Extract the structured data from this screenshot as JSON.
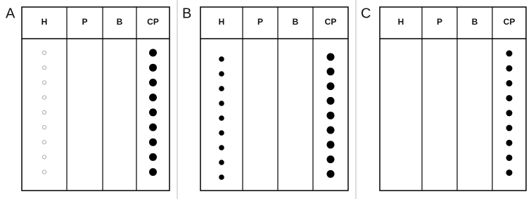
{
  "panels": [
    {
      "label": "A",
      "columns": [
        "H",
        "P",
        "B",
        "CP"
      ]
    },
    {
      "label": "B",
      "columns": [
        "H",
        "P",
        "B",
        "CP"
      ]
    },
    {
      "label": "C",
      "columns": [
        "H",
        "P",
        "B",
        "CP"
      ]
    }
  ]
}
